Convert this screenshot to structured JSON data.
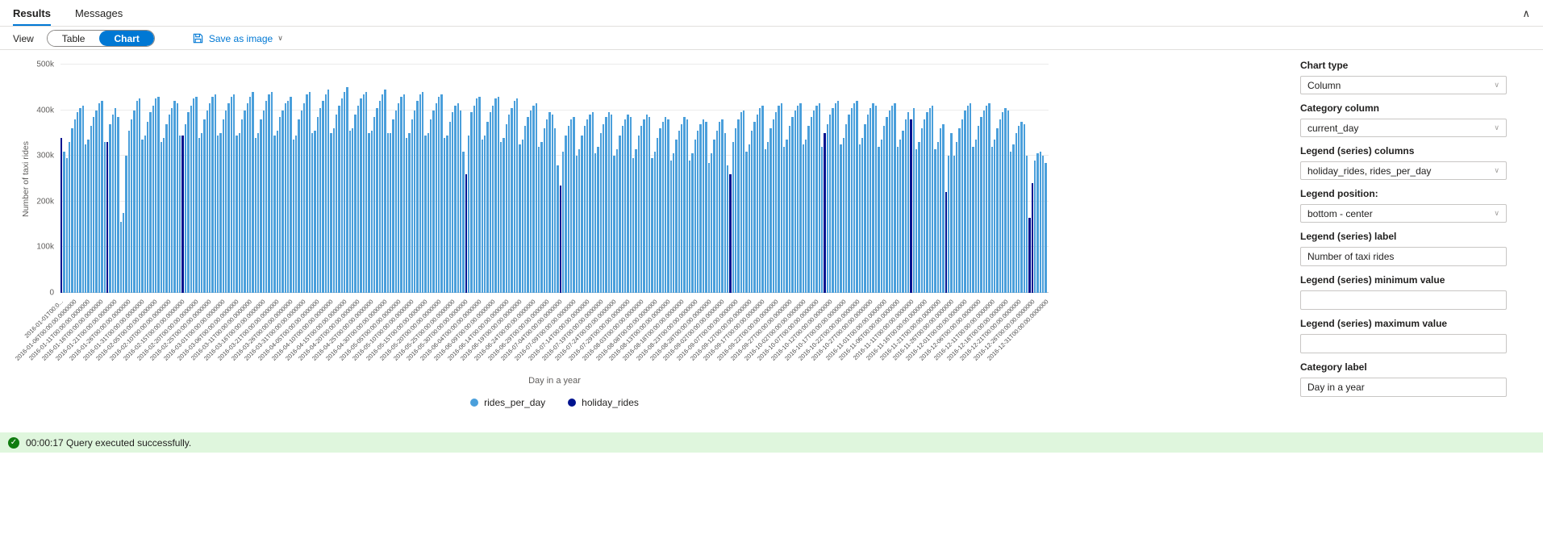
{
  "tabs": {
    "results": "Results",
    "messages": "Messages"
  },
  "toolbar": {
    "view_label": "View",
    "table_button": "Table",
    "chart_button": "Chart",
    "save_as_image": "Save as image"
  },
  "settings_panel": {
    "fields": [
      {
        "label": "Chart type",
        "type": "dropdown",
        "value": "Column"
      },
      {
        "label": "Category column",
        "type": "dropdown",
        "value": "current_day"
      },
      {
        "label": "Legend (series) columns",
        "type": "dropdown",
        "value": "holiday_rides, rides_per_day"
      },
      {
        "label": "Legend position:",
        "type": "dropdown",
        "value": "bottom - center"
      },
      {
        "label": "Legend (series) label",
        "type": "input",
        "value": "Number of taxi rides"
      },
      {
        "label": "Legend (series) minimum value",
        "type": "input",
        "value": ""
      },
      {
        "label": "Legend (series) maximum value",
        "type": "input",
        "value": ""
      },
      {
        "label": "Category label",
        "type": "input",
        "value": "Day in a year"
      }
    ]
  },
  "status_bar": {
    "icon": "check-circle",
    "text": "00:00:17 Query executed successfully."
  },
  "colors": {
    "accent": "#0078d4",
    "bar_blue": "#4a9fdb",
    "holiday_navy": "#00138f",
    "status_bg": "#dff6dd",
    "status_green": "#107c10"
  },
  "chart_data": {
    "type": "bar",
    "title": "",
    "xlabel": "Day in a year",
    "ylabel": "Number of taxi rides",
    "legend_position": "bottom-center",
    "grid": "horizontal",
    "units": "values are thousands of taxi rides per day",
    "ylim_thousands": [
      0,
      500
    ],
    "y_ticks": [
      "0",
      "100k",
      "200k",
      "300k",
      "400k",
      "500k"
    ],
    "start_date": "2016-01-01",
    "x_tick_interval_days": 5,
    "x_tick_time_suffix": "T00:00:00.0000000",
    "x_tick_dates": [
      "2016-01-01",
      "2016-01-06",
      "2016-01-11",
      "2016-01-16",
      "2016-01-21",
      "2016-01-26",
      "2016-01-31",
      "2016-02-05",
      "2016-02-10",
      "2016-02-15",
      "2016-02-20",
      "2016-02-25",
      "2016-03-01",
      "2016-03-06",
      "2016-03-11",
      "2016-03-16",
      "2016-03-21",
      "2016-03-26",
      "2016-03-31",
      "2016-04-05",
      "2016-04-10",
      "2016-04-15",
      "2016-04-20",
      "2016-04-25",
      "2016-04-30",
      "2016-05-05",
      "2016-05-10",
      "2016-05-15",
      "2016-05-20",
      "2016-05-25",
      "2016-05-30",
      "2016-06-04",
      "2016-06-09",
      "2016-06-14",
      "2016-06-19",
      "2016-06-24",
      "2016-06-29",
      "2016-07-04",
      "2016-07-09",
      "2016-07-14",
      "2016-07-19",
      "2016-07-24",
      "2016-07-29",
      "2016-08-03",
      "2016-08-08",
      "2016-08-13",
      "2016-08-18",
      "2016-08-23",
      "2016-08-28",
      "2016-09-02",
      "2016-09-07",
      "2016-09-12",
      "2016-09-17",
      "2016-09-22",
      "2016-09-27",
      "2016-10-02",
      "2016-10-07",
      "2016-10-12",
      "2016-10-17",
      "2016-10-22",
      "2016-10-27",
      "2016-11-01",
      "2016-11-06",
      "2016-11-11",
      "2016-11-16",
      "2016-11-21",
      "2016-11-26",
      "2016-12-01",
      "2016-12-06",
      "2016-12-11",
      "2016-12-16",
      "2016-12-21",
      "2016-12-26",
      "2016-12-31"
    ],
    "legend": [
      {
        "label": "rides_per_day",
        "color": "#4a9fdb"
      },
      {
        "label": "holiday_rides",
        "color": "#00138f"
      }
    ],
    "series": [
      {
        "name": "rides_per_day",
        "values_thousands": [
          340,
          310,
          295,
          330,
          360,
          380,
          395,
          405,
          410,
          325,
          335,
          365,
          385,
          400,
          415,
          420,
          330,
          330,
          370,
          390,
          405,
          385,
          155,
          175,
          300,
          355,
          380,
          400,
          420,
          425,
          335,
          345,
          375,
          395,
          410,
          425,
          430,
          330,
          340,
          370,
          390,
          405,
          420,
          415,
          345,
          345,
          370,
          395,
          410,
          425,
          430,
          340,
          350,
          380,
          400,
          415,
          430,
          435,
          345,
          350,
          380,
          400,
          415,
          430,
          435,
          345,
          350,
          380,
          400,
          415,
          430,
          440,
          340,
          350,
          380,
          400,
          420,
          435,
          440,
          345,
          355,
          385,
          400,
          415,
          420,
          430,
          335,
          345,
          380,
          400,
          415,
          435,
          440,
          350,
          355,
          385,
          405,
          420,
          435,
          445,
          350,
          360,
          390,
          410,
          425,
          440,
          450,
          355,
          360,
          390,
          410,
          425,
          435,
          440,
          350,
          355,
          385,
          405,
          420,
          435,
          445,
          350,
          350,
          380,
          400,
          415,
          430,
          435,
          340,
          350,
          380,
          400,
          420,
          435,
          440,
          345,
          350,
          380,
          400,
          415,
          430,
          435,
          340,
          345,
          375,
          395,
          410,
          415,
          400,
          310,
          260,
          345,
          395,
          410,
          425,
          430,
          335,
          345,
          375,
          395,
          410,
          425,
          430,
          330,
          340,
          370,
          390,
          405,
          420,
          425,
          325,
          335,
          365,
          385,
          400,
          410,
          415,
          320,
          330,
          360,
          380,
          395,
          390,
          360,
          280,
          235,
          310,
          345,
          365,
          380,
          385,
          300,
          315,
          345,
          365,
          380,
          390,
          395,
          305,
          320,
          350,
          370,
          385,
          395,
          390,
          300,
          315,
          345,
          365,
          380,
          390,
          385,
          295,
          315,
          345,
          365,
          380,
          390,
          385,
          295,
          310,
          340,
          360,
          375,
          385,
          380,
          290,
          305,
          335,
          355,
          370,
          385,
          380,
          290,
          305,
          335,
          355,
          370,
          380,
          375,
          285,
          305,
          335,
          355,
          375,
          380,
          350,
          280,
          260,
          330,
          360,
          380,
          395,
          400,
          310,
          325,
          355,
          375,
          390,
          405,
          410,
          315,
          330,
          360,
          380,
          395,
          410,
          415,
          320,
          335,
          365,
          385,
          400,
          410,
          415,
          325,
          335,
          365,
          385,
          400,
          410,
          415,
          320,
          350,
          370,
          390,
          405,
          415,
          420,
          325,
          340,
          370,
          390,
          405,
          415,
          420,
          325,
          340,
          370,
          390,
          405,
          415,
          410,
          320,
          335,
          365,
          385,
          400,
          410,
          415,
          320,
          335,
          355,
          380,
          395,
          380,
          405,
          315,
          330,
          360,
          380,
          395,
          405,
          410,
          315,
          330,
          360,
          370,
          220,
          300,
          350,
          300,
          330,
          360,
          380,
          400,
          410,
          415,
          320,
          335,
          365,
          385,
          400,
          410,
          415,
          320,
          335,
          360,
          380,
          395,
          405,
          400,
          310,
          325,
          350,
          365,
          375,
          370,
          300,
          165,
          240,
          290,
          305,
          310,
          300,
          285
        ]
      },
      {
        "name": "holiday_rides",
        "points": {
          "2016-01-01": 340,
          "2016-01-18": 330,
          "2016-02-15": 345,
          "2016-05-30": 260,
          "2016-07-04": 235,
          "2016-09-05": 260,
          "2016-10-10": 350,
          "2016-11-11": 380,
          "2016-11-24": 220,
          "2016-12-25": 165,
          "2016-12-26": 240
        }
      }
    ]
  }
}
